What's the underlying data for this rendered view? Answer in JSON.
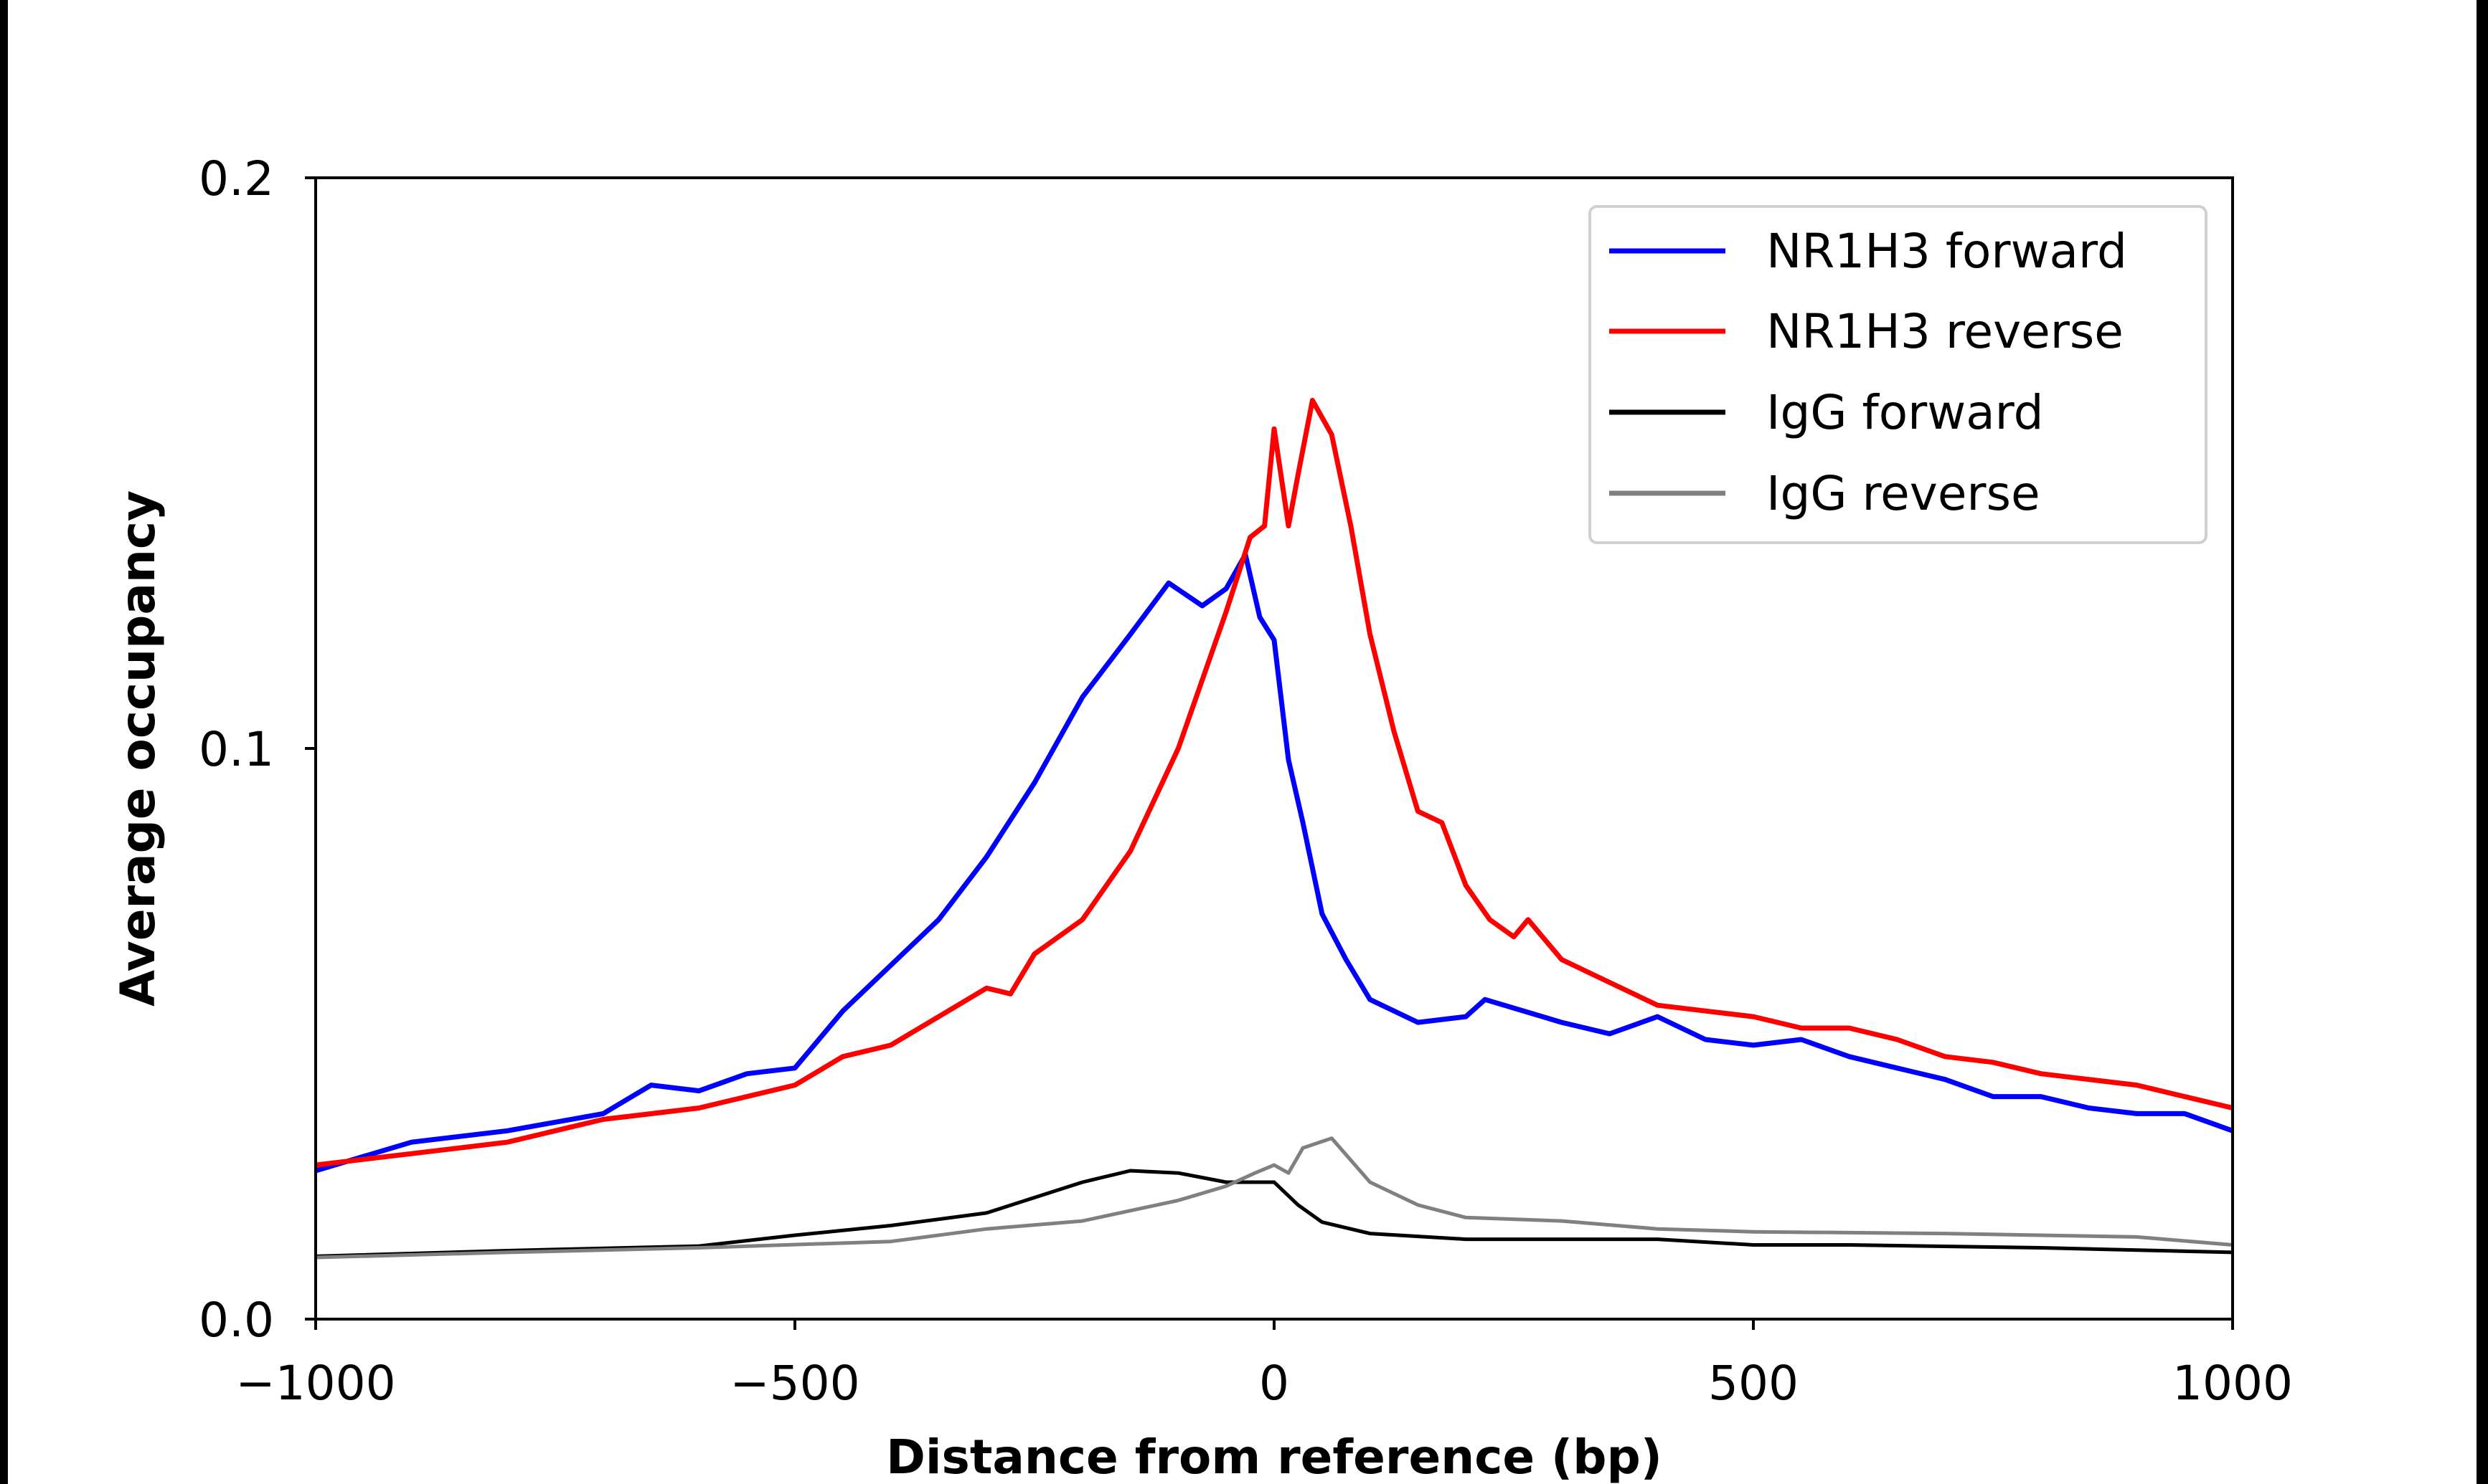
{
  "chart_data": {
    "type": "line",
    "title": "",
    "xlabel": "Distance from reference (bp)",
    "ylabel": "Average occupancy",
    "xlim": [
      -1000,
      1000
    ],
    "ylim": [
      0,
      0.2
    ],
    "xticks": [
      -1000,
      -500,
      0,
      500,
      1000
    ],
    "xtick_labels": [
      "−1000",
      "−500",
      "0",
      "500",
      "1000"
    ],
    "yticks": [
      0,
      0.1,
      0.2
    ],
    "ytick_labels": [
      "0.0",
      "0.1",
      "0.2"
    ],
    "grid": false,
    "legend_position": "top-right",
    "series": [
      {
        "name": "NR1H3 forward",
        "color": "#0000ff",
        "x": [
          -1000,
          -900,
          -800,
          -700,
          -650,
          -600,
          -550,
          -500,
          -450,
          -400,
          -350,
          -300,
          -250,
          -200,
          -150,
          -110,
          -75,
          -50,
          -30,
          -15,
          0,
          15,
          30,
          50,
          75,
          100,
          150,
          200,
          220,
          300,
          350,
          400,
          450,
          500,
          550,
          600,
          650,
          700,
          750,
          800,
          850,
          900,
          950,
          1000
        ],
        "y": [
          0.026,
          0.031,
          0.033,
          0.036,
          0.041,
          0.04,
          0.043,
          0.044,
          0.054,
          0.062,
          0.07,
          0.081,
          0.094,
          0.109,
          0.12,
          0.129,
          0.125,
          0.128,
          0.134,
          0.123,
          0.119,
          0.098,
          0.087,
          0.071,
          0.063,
          0.056,
          0.052,
          0.053,
          0.056,
          0.052,
          0.05,
          0.053,
          0.049,
          0.048,
          0.049,
          0.046,
          0.044,
          0.042,
          0.039,
          0.039,
          0.037,
          0.036,
          0.036,
          0.033
        ]
      },
      {
        "name": "NR1H3 reverse",
        "color": "#ff0000",
        "x": [
          -1000,
          -900,
          -800,
          -700,
          -600,
          -500,
          -450,
          -400,
          -350,
          -300,
          -275,
          -250,
          -200,
          -150,
          -100,
          -75,
          -50,
          -25,
          -10,
          0,
          15,
          25,
          40,
          60,
          80,
          100,
          125,
          150,
          175,
          200,
          225,
          250,
          265,
          300,
          350,
          400,
          450,
          500,
          550,
          600,
          650,
          700,
          750,
          800,
          850,
          900,
          950,
          1000
        ],
        "y": [
          0.027,
          0.029,
          0.031,
          0.035,
          0.037,
          0.041,
          0.046,
          0.048,
          0.053,
          0.058,
          0.057,
          0.064,
          0.07,
          0.082,
          0.1,
          0.112,
          0.124,
          0.137,
          0.139,
          0.156,
          0.139,
          0.148,
          0.161,
          0.155,
          0.139,
          0.12,
          0.103,
          0.089,
          0.087,
          0.076,
          0.07,
          0.067,
          0.07,
          0.063,
          0.059,
          0.055,
          0.054,
          0.053,
          0.051,
          0.051,
          0.049,
          0.046,
          0.045,
          0.043,
          0.042,
          0.041,
          0.039,
          0.037
        ]
      },
      {
        "name": "IgG forward",
        "color": "#000000",
        "x": [
          -1000,
          -800,
          -600,
          -500,
          -400,
          -300,
          -200,
          -150,
          -100,
          -50,
          0,
          25,
          50,
          100,
          200,
          300,
          400,
          500,
          600,
          800,
          1000
        ],
        "y": [
          0.011,
          0.012,
          0.0128,
          0.0147,
          0.0164,
          0.0186,
          0.024,
          0.026,
          0.0256,
          0.024,
          0.024,
          0.02,
          0.017,
          0.015,
          0.014,
          0.014,
          0.014,
          0.013,
          0.013,
          0.0125,
          0.0117
        ]
      },
      {
        "name": "IgG reverse",
        "color": "#808080",
        "x": [
          -1000,
          -800,
          -600,
          -400,
          -300,
          -200,
          -100,
          -50,
          -20,
          0,
          15,
          30,
          60,
          100,
          150,
          200,
          300,
          400,
          500,
          700,
          900,
          1000
        ],
        "y": [
          0.0108,
          0.0117,
          0.0125,
          0.0136,
          0.0158,
          0.0172,
          0.0208,
          0.0233,
          0.0256,
          0.027,
          0.0256,
          0.03,
          0.0317,
          0.024,
          0.02,
          0.0178,
          0.0172,
          0.0158,
          0.0153,
          0.015,
          0.0144,
          0.013
        ]
      }
    ]
  }
}
